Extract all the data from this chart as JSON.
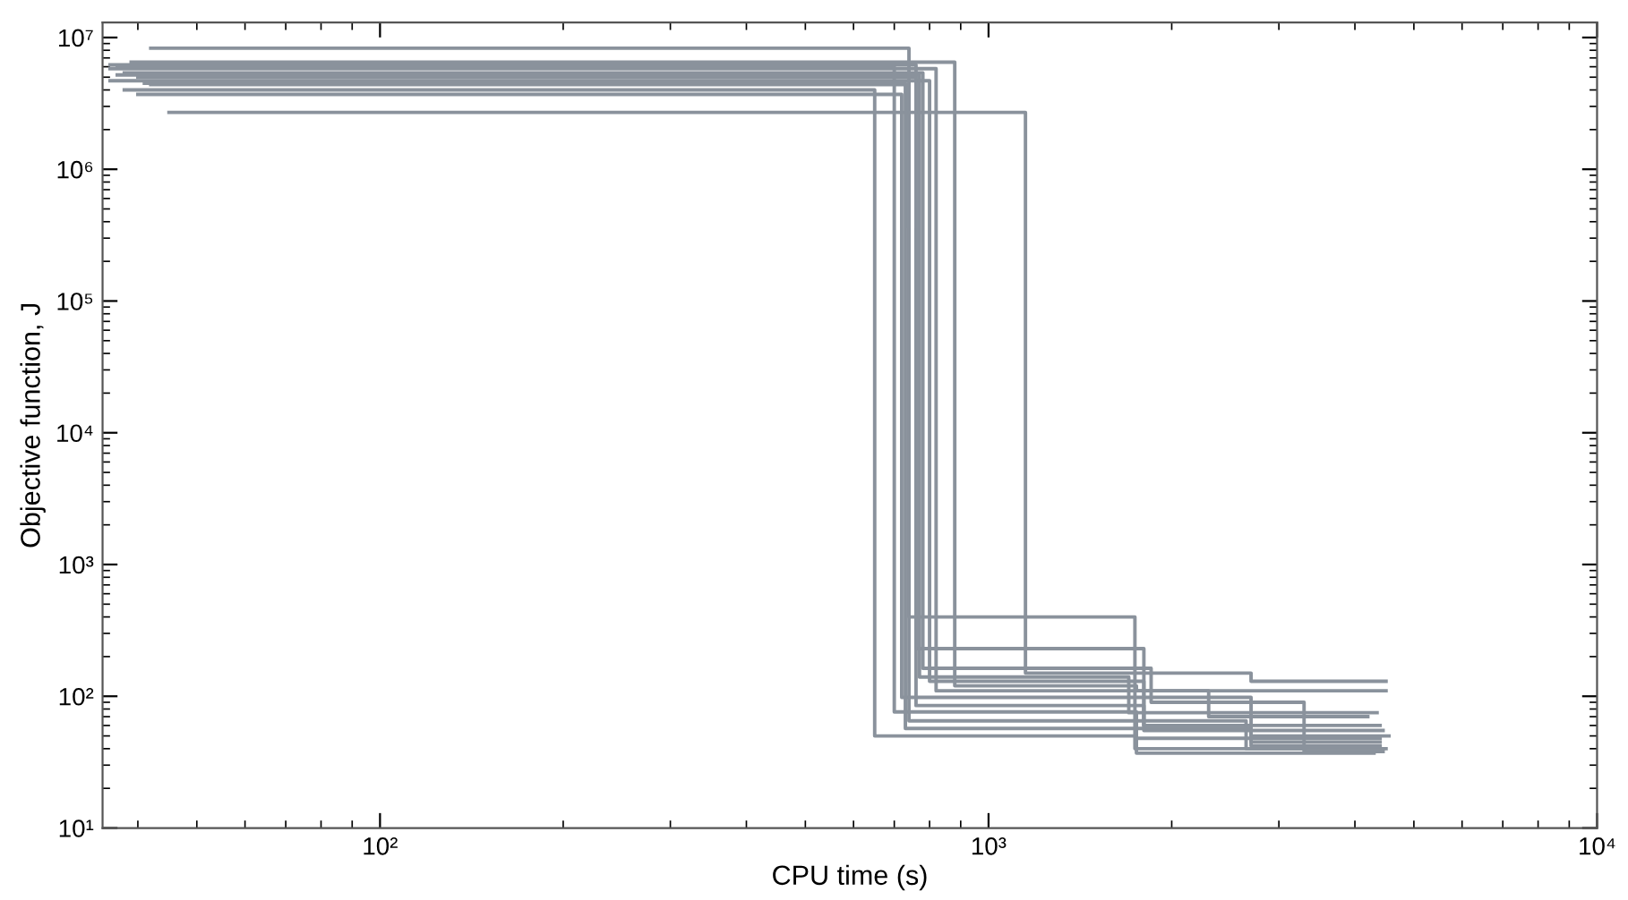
{
  "chart_data": {
    "type": "step",
    "xlabel": "CPU time (s)",
    "ylabel": "Objective function, J",
    "log": "xy",
    "grid": false,
    "legend": false,
    "marker": "none",
    "line_style": "solid",
    "xlim": [
      35,
      10000
    ],
    "ylim": [
      10,
      13000000
    ],
    "xticks": [
      {
        "value": 100,
        "label": "10²"
      },
      {
        "value": 1000,
        "label": "10³"
      },
      {
        "value": 10000,
        "label": "10⁴"
      }
    ],
    "yticks": [
      {
        "value": 10,
        "label": "10¹"
      },
      {
        "value": 100,
        "label": "10²"
      },
      {
        "value": 1000,
        "label": "10³"
      },
      {
        "value": 10000,
        "label": "10⁴"
      },
      {
        "value": 100000,
        "label": "10⁵"
      },
      {
        "value": 1000000,
        "label": "10⁶"
      },
      {
        "value": 10000000,
        "label": "10⁷"
      }
    ],
    "series": [
      {
        "color": "#8a929c",
        "x": [
          42,
          740,
          1740,
          4500
        ],
        "values": [
          8300000,
          400,
          40,
          40
        ]
      },
      {
        "color": "#8a929c",
        "x": [
          36,
          760,
          1800,
          4400
        ],
        "values": [
          6200000,
          230,
          60,
          60
        ]
      },
      {
        "color": "#8a929c",
        "x": [
          38,
          780,
          1850,
          3300,
          4450
        ],
        "values": [
          5400000,
          163,
          90,
          38,
          38
        ]
      },
      {
        "color": "#8a929c",
        "x": [
          36,
          800,
          1800,
          4450
        ],
        "values": [
          4700000,
          130,
          55,
          55
        ]
      },
      {
        "color": "#8a929c",
        "x": [
          40,
          720,
          2700,
          4400
        ],
        "values": [
          3700000,
          98,
          45,
          45
        ]
      },
      {
        "color": "#8a929c",
        "x": [
          45,
          1150,
          2700,
          4500
        ],
        "values": [
          2700000,
          150,
          130,
          130
        ]
      },
      {
        "color": "#8a929c",
        "x": [
          37,
          700,
          1750,
          4300
        ],
        "values": [
          6000000,
          76,
          37,
          37
        ]
      },
      {
        "color": "#8a929c",
        "x": [
          38,
          650,
          1750,
          4400
        ],
        "values": [
          4000000,
          50,
          48,
          48
        ]
      },
      {
        "color": "#8a929c",
        "x": [
          36,
          820,
          2300,
          4200
        ],
        "values": [
          5800000,
          110,
          70,
          70
        ]
      },
      {
        "color": "#8a929c",
        "x": [
          40,
          760,
          1800,
          2700,
          4400
        ],
        "values": [
          5000000,
          85,
          60,
          42,
          42
        ]
      },
      {
        "color": "#8a929c",
        "x": [
          39,
          880,
          1750,
          4500
        ],
        "values": [
          6500000,
          120,
          110,
          110
        ]
      },
      {
        "color": "#8a929c",
        "x": [
          42,
          740,
          2650,
          4450
        ],
        "values": [
          4400000,
          65,
          40,
          40
        ]
      },
      {
        "color": "#8a929c",
        "x": [
          37,
          770,
          1700,
          4350
        ],
        "values": [
          5200000,
          140,
          75,
          75
        ]
      },
      {
        "color": "#8a929c",
        "x": [
          41,
          730,
          2700,
          4550
        ],
        "values": [
          4500000,
          57,
          50,
          50
        ]
      }
    ]
  }
}
